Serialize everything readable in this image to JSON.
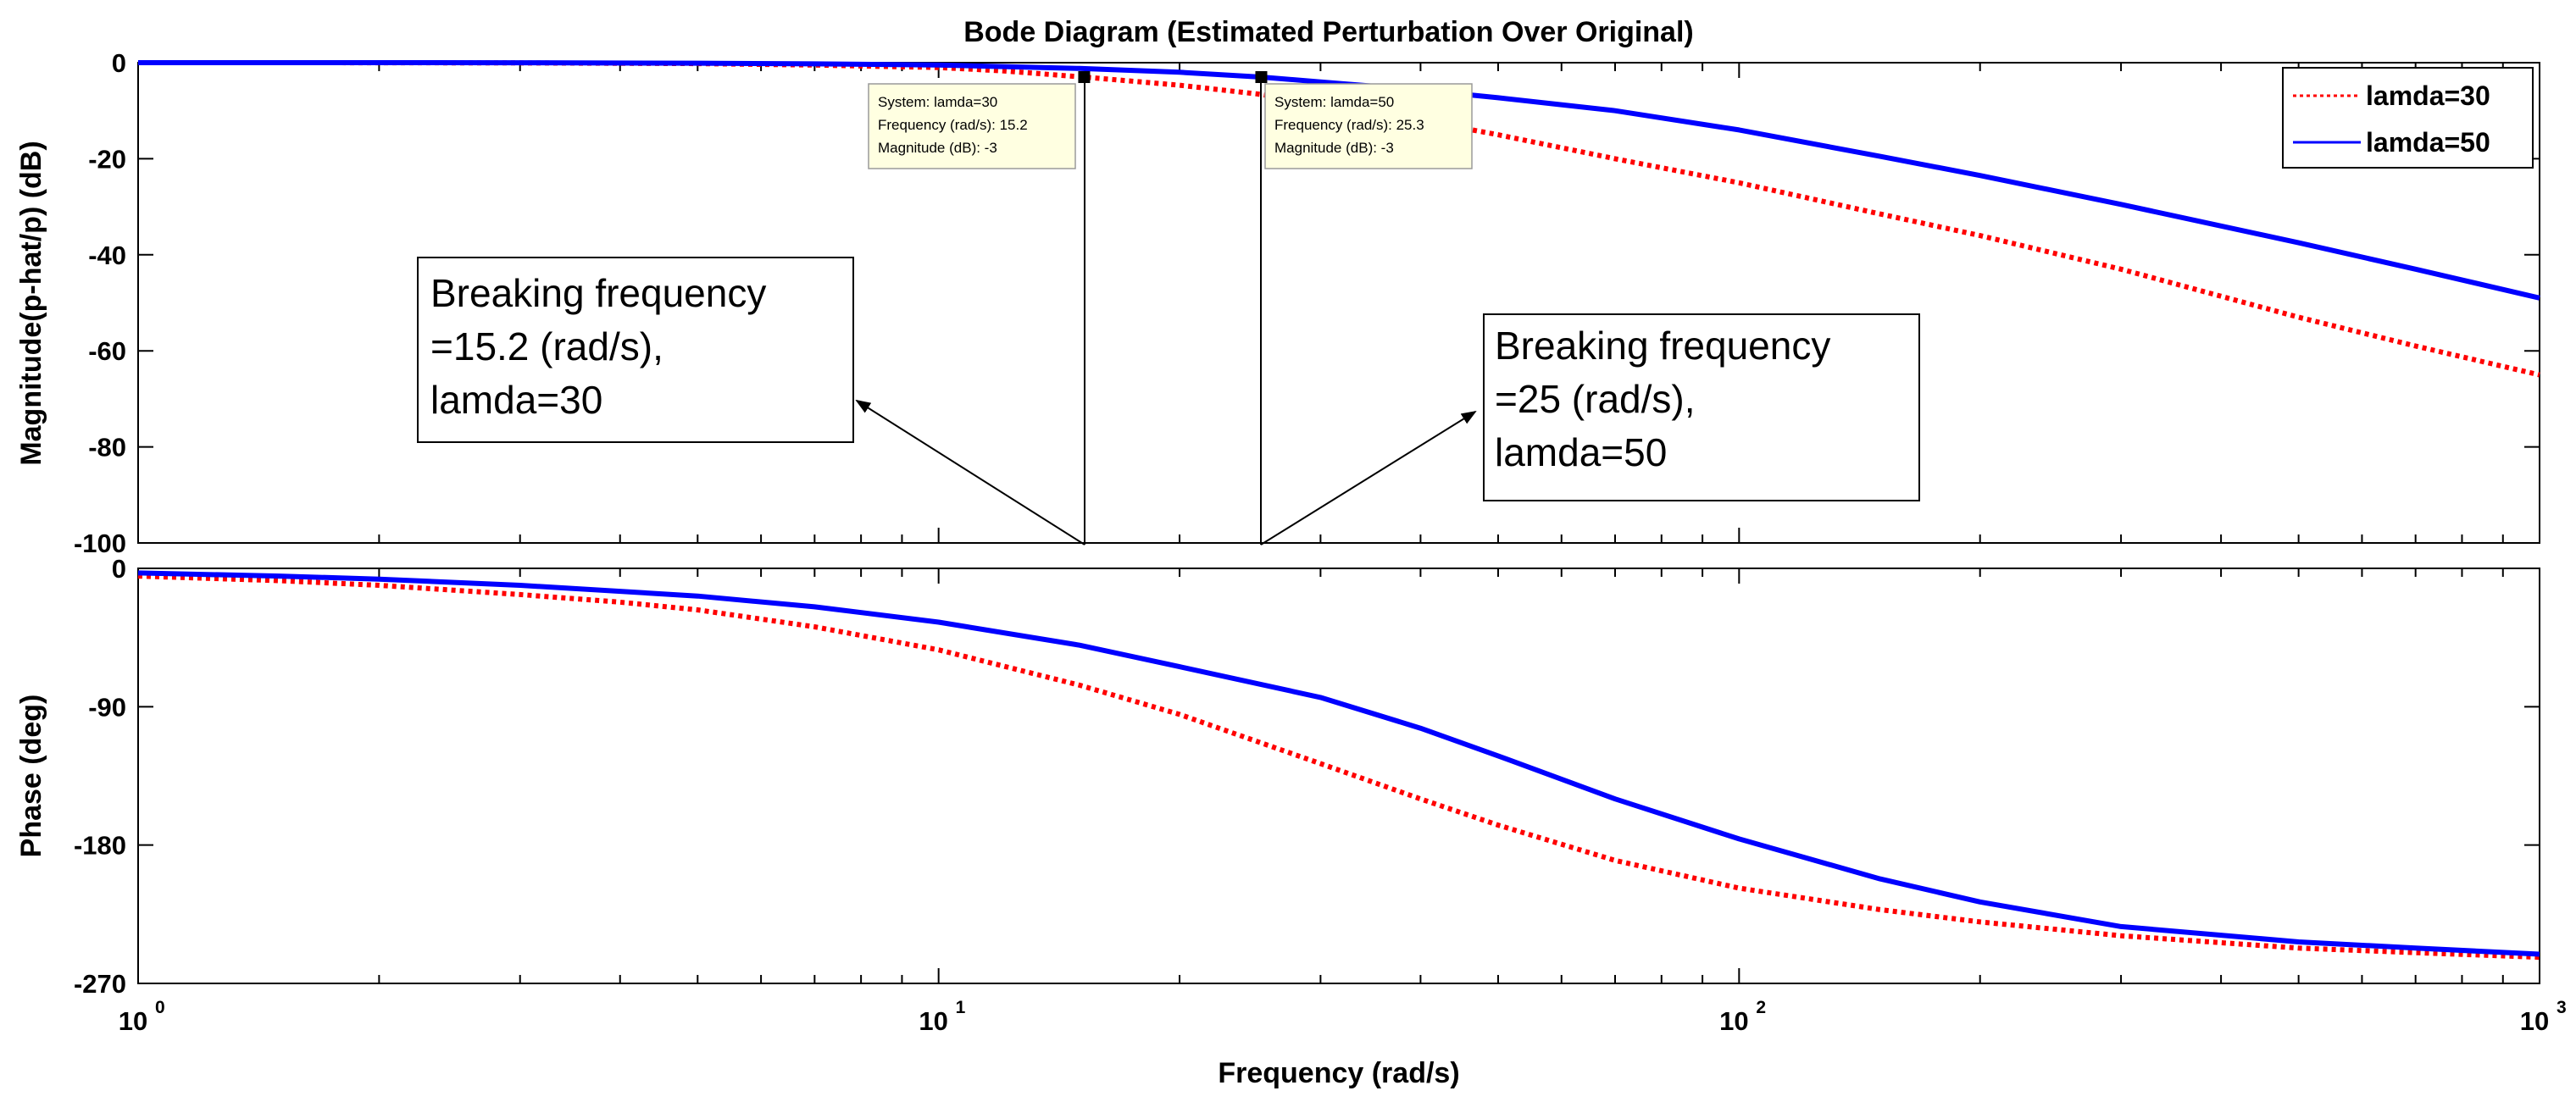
{
  "chart_data": [
    {
      "type": "line",
      "panel": "magnitude",
      "title": "Bode Diagram (Estimated Perturbation Over Original)",
      "xlabel": "Frequency  (rad/s)",
      "ylabel": "Magnitude(p-hat/p) (dB)",
      "xscale": "log",
      "xlim": [
        1,
        1000
      ],
      "ylim": [
        -100,
        0
      ],
      "yticks": [
        0,
        -20,
        -40,
        -60,
        -80,
        -100
      ],
      "ytick_labels": [
        "0",
        "-20",
        "-40",
        "-60",
        "-80",
        "-100"
      ],
      "grid": false,
      "legend_position": "top-right",
      "series": [
        {
          "name": "lamda=30",
          "color": "#ff0000",
          "style": "dotted",
          "x": [
            1,
            1.5,
            2,
            3,
            5,
            7,
            10,
            12,
            15.2,
            20,
            25,
            30,
            40,
            50,
            70,
            100,
            150,
            200,
            300,
            500,
            700,
            1000
          ],
          "y": [
            0,
            0,
            -0.01,
            -0.05,
            -0.2,
            -0.5,
            -1,
            -1.7,
            -3,
            -4.7,
            -6.5,
            -8.5,
            -12,
            -15,
            -20,
            -25,
            -31.5,
            -36,
            -43,
            -53,
            -59,
            -65
          ]
        },
        {
          "name": "lamda=50",
          "color": "#0000ff",
          "style": "solid",
          "x": [
            1,
            1.5,
            2,
            3,
            5,
            7,
            10,
            15,
            20,
            25.3,
            30,
            40,
            50,
            70,
            100,
            150,
            200,
            300,
            500,
            700,
            1000
          ],
          "y": [
            0,
            0,
            0,
            -0.02,
            -0.1,
            -0.25,
            -0.5,
            -1.2,
            -2,
            -3,
            -4,
            -5.7,
            -7.3,
            -10,
            -14,
            -19.5,
            -23.5,
            -29.5,
            -37.5,
            -43,
            -49
          ]
        }
      ],
      "datatips": [
        {
          "system": "System: lamda=30",
          "frequency": "Frequency (rad/s): 15.2",
          "magnitude": "Magnitude (dB): -3",
          "x": 15.2,
          "y": -3
        },
        {
          "system": "System: lamda=50",
          "frequency": "Frequency (rad/s): 25.3",
          "magnitude": "Magnitude (dB): -3",
          "x": 25.3,
          "y": -3
        }
      ],
      "annotations": [
        {
          "lines": [
            "Breaking frequency",
            "=15.2 (rad/s),",
            "lamda=30"
          ]
        },
        {
          "lines": [
            "Breaking frequency",
            "=25 (rad/s),",
            "lamda=50"
          ]
        }
      ]
    },
    {
      "type": "line",
      "panel": "phase",
      "xlabel": "Frequency  (rad/s)",
      "ylabel": "Phase (deg)",
      "xscale": "log",
      "xlim": [
        1,
        1000
      ],
      "ylim": [
        -270,
        0
      ],
      "yticks": [
        0,
        -90,
        -180,
        -270
      ],
      "ytick_labels": [
        "0",
        "-90",
        "-180",
        "-270"
      ],
      "xtick_labels": [
        {
          "base": "10",
          "exp": "0"
        },
        {
          "base": "10",
          "exp": "1"
        },
        {
          "base": "10",
          "exp": "2"
        },
        {
          "base": "10",
          "exp": "3"
        }
      ],
      "grid": false,
      "series": [
        {
          "name": "lamda=30",
          "color": "#ff0000",
          "style": "dotted",
          "x": [
            1,
            1.5,
            2,
            3,
            4,
            5,
            7,
            10,
            15,
            20,
            30,
            40,
            50,
            70,
            100,
            150,
            200,
            300,
            500,
            700,
            1000
          ],
          "y": [
            -5,
            -8,
            -11,
            -17,
            -22,
            -27,
            -38,
            -53,
            -76,
            -95,
            -127,
            -150,
            -167,
            -190,
            -208,
            -222,
            -230,
            -239,
            -247,
            -250,
            -253
          ]
        },
        {
          "name": "lamda=50",
          "color": "#0000ff",
          "style": "solid",
          "x": [
            1,
            1.5,
            2,
            3,
            5,
            7,
            10,
            15,
            20,
            30,
            40,
            50,
            70,
            100,
            150,
            200,
            300,
            500,
            700,
            1000
          ],
          "y": [
            -3,
            -5,
            -7,
            -11,
            -18,
            -25,
            -35,
            -50,
            -64,
            -84,
            -104,
            -122,
            -150,
            -176,
            -202,
            -217,
            -233,
            -243,
            -247,
            -251
          ]
        }
      ]
    }
  ]
}
